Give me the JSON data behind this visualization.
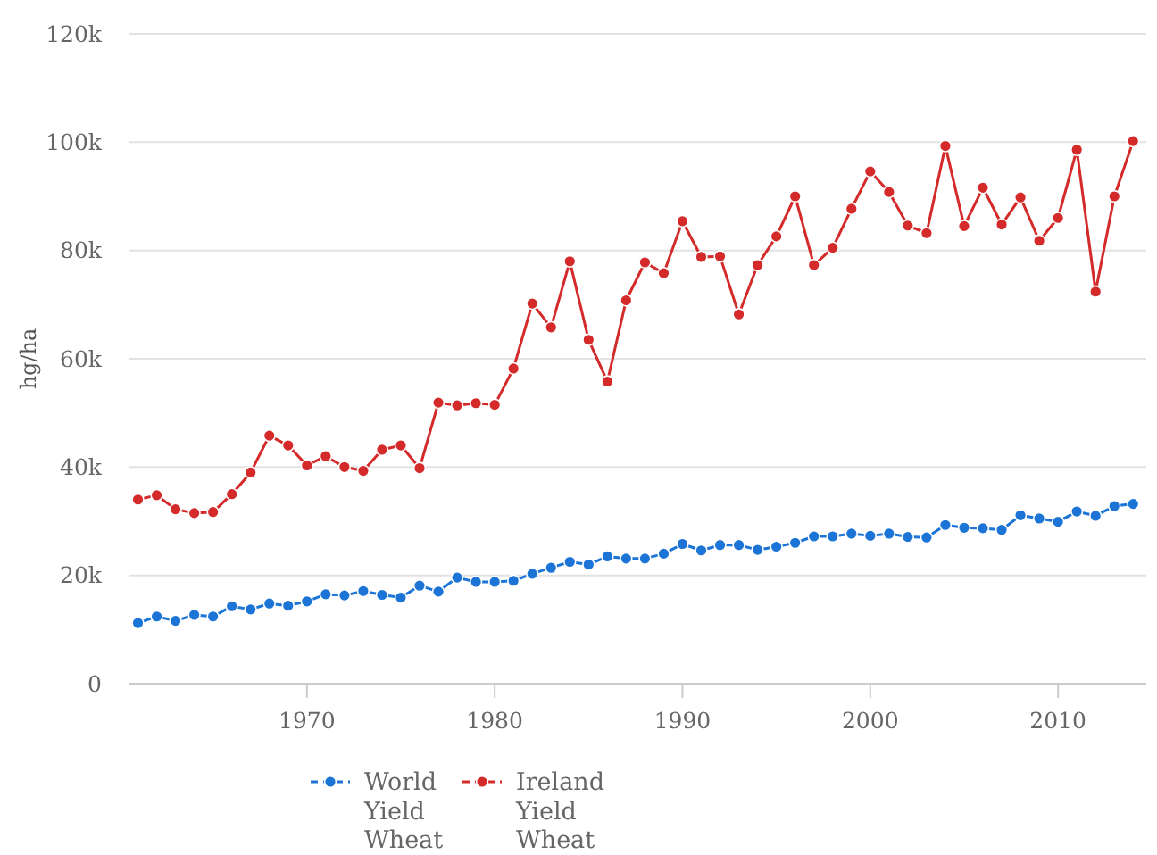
{
  "chart_data": {
    "type": "line",
    "ylabel": "hg/ha",
    "x": [
      1961,
      1962,
      1963,
      1964,
      1965,
      1966,
      1967,
      1968,
      1969,
      1970,
      1971,
      1972,
      1973,
      1974,
      1975,
      1976,
      1977,
      1978,
      1979,
      1980,
      1981,
      1982,
      1983,
      1984,
      1985,
      1986,
      1987,
      1988,
      1989,
      1990,
      1991,
      1992,
      1993,
      1994,
      1995,
      1996,
      1997,
      1998,
      1999,
      2000,
      2001,
      2002,
      2003,
      2004,
      2005,
      2006,
      2007,
      2008,
      2009,
      2010,
      2011,
      2012,
      2013,
      2014
    ],
    "series": [
      {
        "name": "World Yield Wheat",
        "color": "#1b74d6",
        "values": [
          11200,
          12400,
          11600,
          12700,
          12400,
          14300,
          13700,
          14800,
          14400,
          15200,
          16500,
          16300,
          17100,
          16400,
          15900,
          18100,
          17000,
          19600,
          18800,
          18800,
          19000,
          20300,
          21400,
          22500,
          22000,
          23500,
          23100,
          23100,
          24000,
          25800,
          24600,
          25600,
          25600,
          24700,
          25300,
          26000,
          27200,
          27200,
          27700,
          27300,
          27700,
          27100,
          27000,
          29300,
          28800,
          28700,
          28400,
          31100,
          30500,
          29900,
          31800,
          31000,
          32800,
          33200
        ]
      },
      {
        "name": "Ireland Yield Wheat",
        "color": "#d42a2a",
        "values": [
          34000,
          34800,
          32200,
          31500,
          31700,
          35000,
          39000,
          45800,
          44000,
          40300,
          42000,
          40000,
          39300,
          43200,
          44000,
          39800,
          51900,
          51400,
          51800,
          51500,
          58200,
          70200,
          65800,
          78000,
          63500,
          55800,
          70800,
          77800,
          75800,
          85400,
          78800,
          78900,
          68200,
          77300,
          82600,
          90000,
          77300,
          80500,
          87700,
          94600,
          90800,
          84600,
          83200,
          99300,
          84500,
          91600,
          84800,
          89800,
          81800,
          86000,
          98600,
          72400,
          90000,
          100200
        ]
      }
    ],
    "xlim": [
      1960.5,
      2014.7
    ],
    "xticks": [
      1970,
      1980,
      1990,
      2000,
      2010
    ],
    "ylim": [
      0,
      120000
    ],
    "yticks": [
      0,
      {
        "value": 20000,
        "label": "20k"
      },
      {
        "value": 40000,
        "label": "40k"
      },
      {
        "value": 60000,
        "label": "60k"
      },
      {
        "value": 80000,
        "label": "80k"
      },
      {
        "value": 100000,
        "label": "100k"
      },
      {
        "value": 120000,
        "label": "120k"
      }
    ],
    "grid": "y",
    "legend": "bottom",
    "marker": "circle"
  }
}
